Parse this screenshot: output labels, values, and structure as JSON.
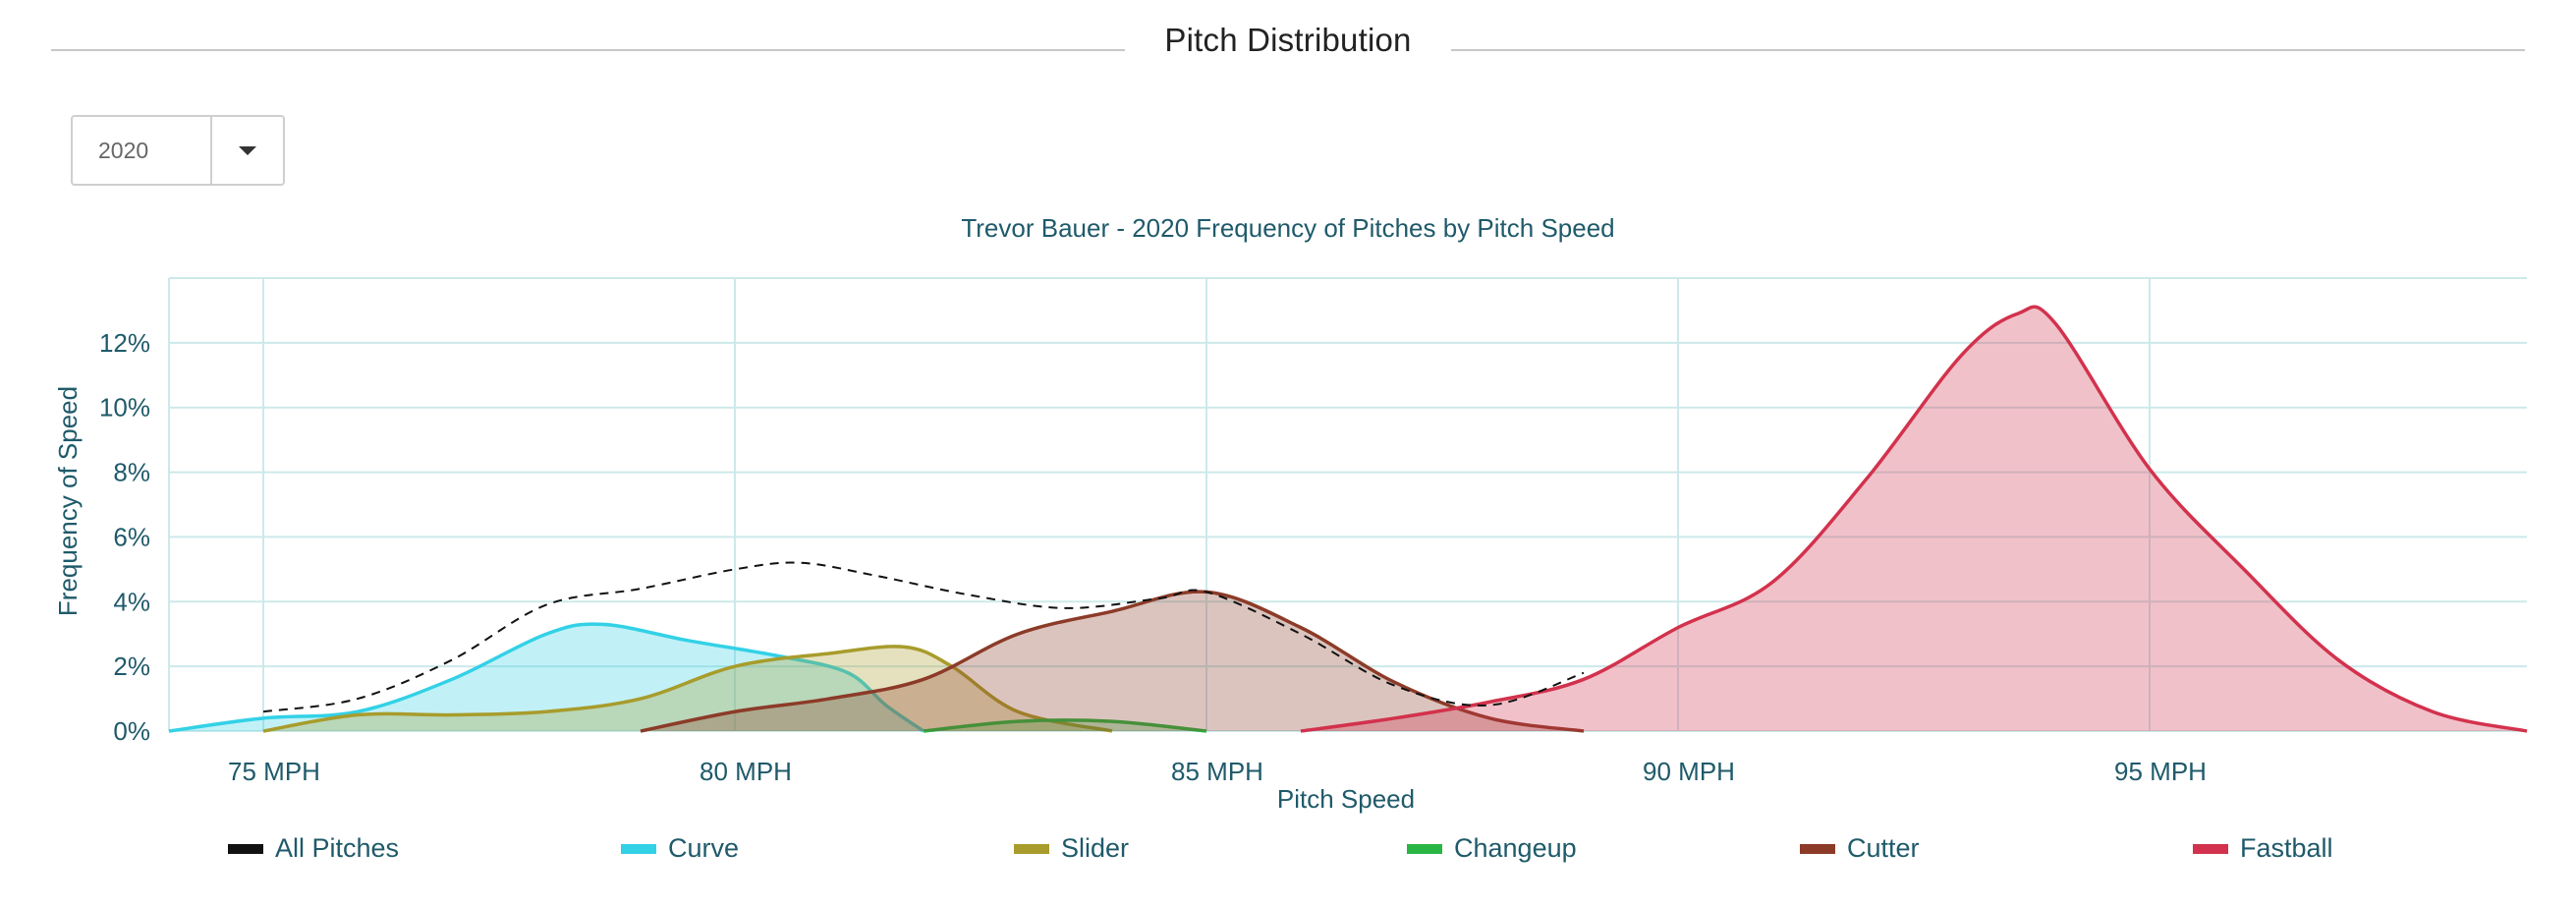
{
  "section_title": "Pitch Distribution",
  "year_select": {
    "value": "2020",
    "options": [
      "2020"
    ]
  },
  "chart_data": {
    "type": "area",
    "title": "Trevor Bauer - 2020 Frequency of Pitches by Pitch Speed",
    "xlabel": "Pitch Speed",
    "ylabel": "Frequency of Speed",
    "xlim": [
      74,
      99
    ],
    "ylim": [
      0,
      14
    ],
    "x_ticks": [
      75,
      80,
      85,
      90,
      95
    ],
    "x_tick_labels": [
      "75 MPH",
      "80 MPH",
      "85 MPH",
      "90 MPH",
      "95 MPH"
    ],
    "y_ticks": [
      0,
      2,
      4,
      6,
      8,
      10,
      12
    ],
    "y_tick_labels": [
      "0%",
      "2%",
      "4%",
      "6%",
      "8%",
      "10%",
      "12%"
    ],
    "grid": true,
    "legend_position": "bottom",
    "series": [
      {
        "name": "All Pitches",
        "color": "#111111",
        "style": "dashed",
        "x": [
          75,
          76,
          77,
          78,
          79,
          80,
          80.7,
          81.5,
          82.5,
          83.5,
          84.5,
          85,
          86,
          87,
          88,
          89
        ],
        "y": [
          0.6,
          1.0,
          2.2,
          3.9,
          4.4,
          5.0,
          5.2,
          4.8,
          4.2,
          3.8,
          4.1,
          4.3,
          3.0,
          1.4,
          0.8,
          1.8
        ]
      },
      {
        "name": "Curve",
        "color": "#33d1e6",
        "x": [
          74,
          75,
          76,
          77,
          78,
          78.6,
          79.5,
          80.5,
          81.2,
          81.6,
          82
        ],
        "y": [
          0,
          0.4,
          0.6,
          1.6,
          3.0,
          3.3,
          2.8,
          2.3,
          1.8,
          0.8,
          0
        ]
      },
      {
        "name": "Slider",
        "color": "#a89c2c",
        "x": [
          75,
          76,
          77,
          78,
          79,
          80,
          81,
          81.8,
          82.3,
          83,
          84
        ],
        "y": [
          0,
          0.5,
          0.5,
          0.6,
          1.0,
          2.0,
          2.4,
          2.6,
          2.0,
          0.6,
          0
        ]
      },
      {
        "name": "Changeup",
        "color": "#29b543",
        "x": [
          82,
          83,
          84,
          85
        ],
        "y": [
          0,
          0.3,
          0.3,
          0
        ]
      },
      {
        "name": "Cutter",
        "color": "#8c3b28",
        "x": [
          79,
          80,
          81,
          82,
          83,
          84,
          85,
          86,
          87,
          88,
          89
        ],
        "y": [
          0,
          0.6,
          1.0,
          1.6,
          3.0,
          3.7,
          4.3,
          3.2,
          1.5,
          0.4,
          0
        ]
      },
      {
        "name": "Fastball",
        "color": "#d2324d",
        "x": [
          86,
          87,
          88,
          89,
          90,
          91,
          92,
          93,
          93.6,
          94,
          95,
          96,
          97,
          98,
          99
        ],
        "y": [
          0,
          0.4,
          0.9,
          1.6,
          3.2,
          4.6,
          7.8,
          11.6,
          12.9,
          12.6,
          8.1,
          5.0,
          2.2,
          0.6,
          0
        ]
      }
    ]
  }
}
